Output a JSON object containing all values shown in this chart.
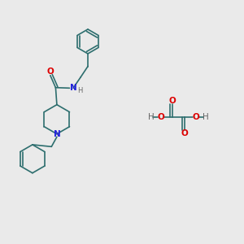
{
  "background_color": "#eaeaea",
  "bond_color": "#2d6e6e",
  "N_color": "#2222dd",
  "O_color": "#dd0000",
  "H_color": "#666666",
  "line_width": 1.2,
  "font_size": 7.5,
  "fig_size": [
    3.0,
    3.0
  ],
  "dpi": 100,
  "xlim": [
    0,
    10
  ],
  "ylim": [
    0,
    10
  ]
}
